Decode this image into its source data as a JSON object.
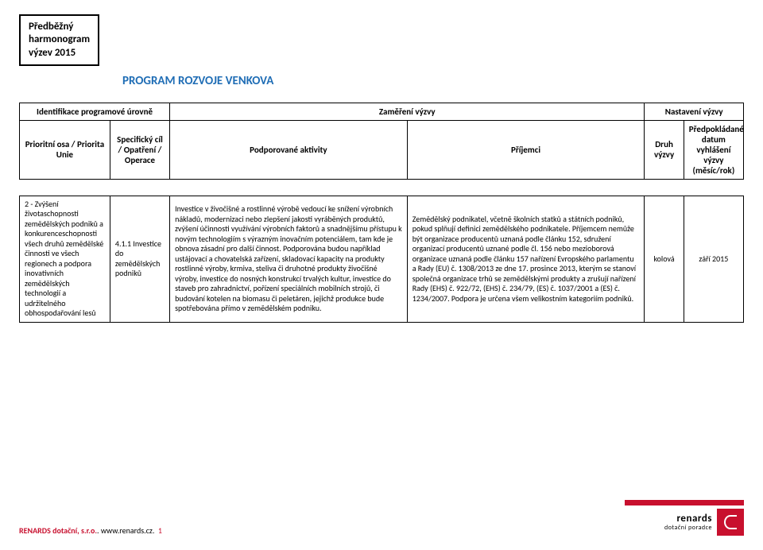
{
  "header": {
    "title_line1": "Předběžný",
    "title_line2": "harmonogram",
    "title_line3": "výzev 2015",
    "program_title": "PROGRAM ROZVOJE VENKOVA"
  },
  "top_table": {
    "row1": {
      "ident": "Identifikace programové úrovně",
      "focus": "Zaměření výzvy",
      "setup": "Nastavení výzvy"
    },
    "row2": {
      "priority": "Prioritní osa / Priorita Unie",
      "specific": "Specifický cíl / Opatření / Operace",
      "activity": "Podporované aktivity",
      "recipients": "Příjemci",
      "type": "Druh výzvy",
      "date": "Předpokládané datum vyhlášení výzvy (měsíc/rok)"
    }
  },
  "data_table": {
    "row": {
      "priority": "2 - Zvýšení životaschopnosti zemědělských podniků a konkurenceschopnosti všech druhů zemědělské činnosti ve všech regionech a podpora inovativních zemědělských technologií a udržitelného obhospodařování lesů",
      "specific": "4.1.1 Investice do zemědělských podniků",
      "activity": "Investice v živočišné a rostlinné výrobě vedoucí ke snížení výrobních nákladů, modernizaci nebo zlepšení jakosti vyráběných produktů, zvýšení účinnosti využívání výrobních faktorů a snadnějšímu přístupu k novým technologiím s výrazným inovačním potenciálem, tam kde je obnova zásadní pro další činnost. Podporována budou například ustájovací a chovatelská zařízení, skladovací kapacity na produkty rostlinné výroby, krmiva, steliva či druhotné produkty živočišné výroby, investice do nosných konstrukcí trvalých kultur, investice do staveb pro zahradnictví, pořízení speciálních mobilních strojů, či budování kotelen na biomasu či peletáren, jejichž produkce bude spotřebována přímo v zemědělském podniku.",
      "recipients": "Zemědělský podnikatel, včetně školních statků a státních podniků, pokud splňují definici zemědělského podnikatele. Příjemcem nemůže být organizace producentů uznaná podle článku 152, sdružení organizací producentů uznané podle čl. 156 nebo mezioborová organizace uznaná podle článku 157 nařízení Evropského parlamentu a Rady (EU) č. 1308/2013 ze dne 17. prosince 2013, kterým se stanoví společná organizace trhů se zemědělskými produkty a zrušují nařízení Rady (EHS) č. 922/72, (EHS) č. 234/79, (ES) č. 1037/2001 a (ES) č. 1234/2007. Podpora je určena všem velikostním kategoriím podniků.",
      "type": "kolová",
      "date": "září 2015"
    }
  },
  "footer": {
    "brand": "RENARDS dotační, s.r.o.",
    "sep": ". ",
    "url": "www.renards.cz",
    "dot": ".",
    "page": "1",
    "logo_main": "renards",
    "logo_sub": "dotační poradce"
  }
}
